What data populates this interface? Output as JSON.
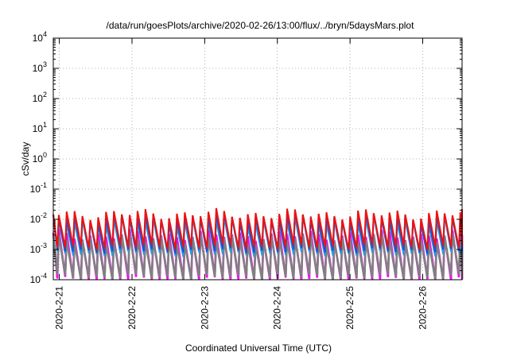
{
  "chart_data": {
    "type": "line",
    "title": "/data/run/goesPlots/archive/2020-02-26/13:00/flux/../bryn/5daysMars.plot",
    "xlabel": "Coordinated Universal Time (UTC)",
    "ylabel": "cSv/day",
    "y_scale": "log",
    "ylim_exponent": [
      -4,
      4
    ],
    "y_tick_labels": [
      {
        "base": "10",
        "exp": "4"
      },
      {
        "base": "10",
        "exp": "3"
      },
      {
        "base": "10",
        "exp": "2"
      },
      {
        "base": "10",
        "exp": "1"
      },
      {
        "base": "10",
        "exp": "0"
      },
      {
        "base": "10",
        "exp": "-1"
      },
      {
        "base": "10",
        "exp": "-2"
      },
      {
        "base": "10",
        "exp": "-3"
      },
      {
        "base": "10",
        "exp": "-4"
      }
    ],
    "x_range": [
      "2020-02-20T22:00",
      "2020-02-26T13:00"
    ],
    "x_ticks": [
      "2020-2-21",
      "2020-2-22",
      "2020-2-23",
      "2020-2-24",
      "2020-2-25",
      "2020-2-26"
    ],
    "grid": true,
    "legend": "none",
    "sawtooth_period_hours": 2.6,
    "series": [
      {
        "color": "#ff00ff",
        "peak": 0.003,
        "trough": 0.0001
      },
      {
        "color": "#808080",
        "peak": 0.0022,
        "trough": 0.00012
      },
      {
        "color": "#2b9bd6",
        "peak": 0.009,
        "trough": 0.0007
      },
      {
        "color": "#1f4fd8",
        "peak": 0.0115,
        "trough": 0.0009
      },
      {
        "color": "#ee1111",
        "peak": 0.015,
        "trough": 0.0012
      }
    ]
  }
}
